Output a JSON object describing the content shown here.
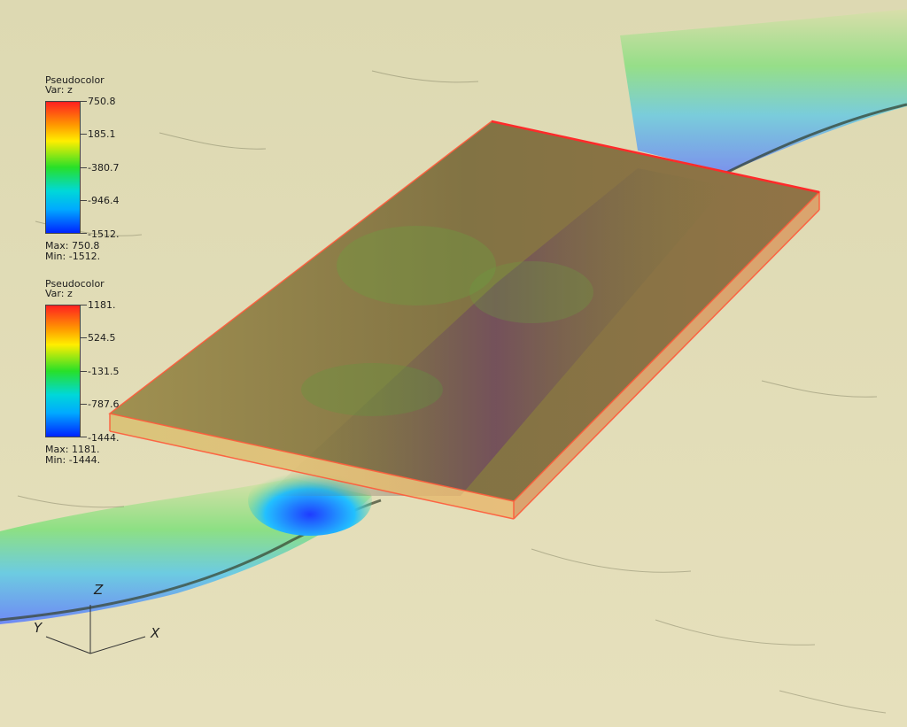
{
  "legends": [
    {
      "title": "Pseudocolor",
      "var_label": "Var: z",
      "ticks": [
        "750.8",
        "185.1",
        "-380.7",
        "-946.4",
        "-1512."
      ],
      "max_label": "Max: 750.8",
      "min_label": "Min: -1512."
    },
    {
      "title": "Pseudocolor",
      "var_label": "Var: z",
      "ticks": [
        "1181.",
        "524.5",
        "-131.5",
        "-787.6",
        "-1444."
      ],
      "max_label": "Max: 1181.",
      "min_label": "Min: -1444."
    }
  ],
  "axes": {
    "x": "X",
    "y": "Y",
    "z": "Z"
  },
  "colors": {
    "background_terrain": "#e4dfb8",
    "box_edge": "#ff5a3a",
    "trench": "#0030ff"
  }
}
